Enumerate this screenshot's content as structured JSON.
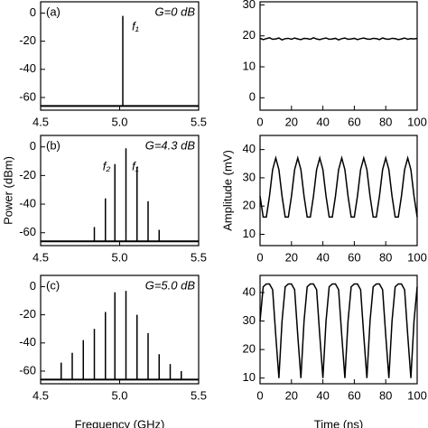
{
  "chart_data": [
    {
      "type": "stem",
      "panel_label": "(a)",
      "gain_label": "G=0 dB",
      "peak_labels": [
        "f₁"
      ],
      "x": [
        5.02
      ],
      "values": [
        -2
      ],
      "noise_floor": -66,
      "xlim": [
        4.5,
        5.5
      ],
      "xticks": [
        4.5,
        {
          "value": 5,
          "label": "5.0"
        },
        5.5
      ],
      "ylim": [
        -69,
        8
      ],
      "yticks": [
        -60,
        -40,
        -20,
        0
      ],
      "color": "#000000"
    },
    {
      "type": "stem",
      "panel_label": "(b)",
      "gain_label": "G=4.3 dB",
      "peak_labels": [
        "f₂",
        "f₁"
      ],
      "ylabel": "Power (dBm)",
      "x": [
        4.84,
        4.91,
        4.97,
        5.04,
        5.11,
        5.18,
        5.25
      ],
      "values": [
        -56,
        -36,
        -12,
        -1,
        -14,
        -38,
        -58
      ],
      "noise_floor": -66,
      "xlim": [
        4.5,
        5.5
      ],
      "xticks": [
        4.5,
        {
          "value": 5,
          "label": "5.0"
        },
        5.5
      ],
      "ylim": [
        -69,
        8
      ],
      "yticks": [
        -60,
        -40,
        -20,
        0
      ],
      "color": "#000000"
    },
    {
      "type": "stem",
      "panel_label": "(c)",
      "gain_label": "G=5.0 dB",
      "xlabel": "Frequency (GHz)",
      "x": [
        4.63,
        4.7,
        4.77,
        4.84,
        4.91,
        4.97,
        5.04,
        5.11,
        5.18,
        5.25,
        5.32,
        5.39
      ],
      "values": [
        -54,
        -47,
        -38,
        -30,
        -18,
        -4,
        -3,
        -20,
        -33,
        -48,
        -55,
        -60
      ],
      "noise_floor": -66,
      "xlim": [
        4.5,
        5.5
      ],
      "xticks": [
        4.5,
        {
          "value": 5,
          "label": "5.0"
        },
        5.5
      ],
      "ylim": [
        -69,
        8
      ],
      "yticks": [
        -60,
        -40,
        -20,
        0
      ],
      "color": "#000000"
    },
    {
      "type": "line",
      "x": [
        0,
        2,
        4,
        6,
        8,
        10,
        12,
        14,
        16,
        18,
        20,
        22,
        24,
        26,
        28,
        30,
        32,
        34,
        36,
        38,
        40,
        42,
        44,
        46,
        48,
        50,
        52,
        54,
        56,
        58,
        60,
        62,
        64,
        66,
        68,
        70,
        72,
        74,
        76,
        78,
        80,
        82,
        84,
        86,
        88,
        90,
        92,
        94,
        96,
        98,
        100
      ],
      "values": [
        19.2,
        18.8,
        19.1,
        19.4,
        18.9,
        19.0,
        19.3,
        18.7,
        19.1,
        19.2,
        18.9,
        19.3,
        19.0,
        18.8,
        19.2,
        19.1,
        18.9,
        19.4,
        19.0,
        18.8,
        19.1,
        19.3,
        18.9,
        19.0,
        19.2,
        18.7,
        19.1,
        19.3,
        18.9,
        19.0,
        19.2,
        18.8,
        19.1,
        19.3,
        19.0,
        18.9,
        19.2,
        19.1,
        18.8,
        19.3,
        19.0,
        18.9,
        19.2,
        19.1,
        18.8,
        19.0,
        19.3,
        18.9,
        19.1,
        19.0,
        19.2
      ],
      "xlim": [
        0,
        100
      ],
      "xticks": [
        0,
        20,
        40,
        60,
        80,
        100
      ],
      "ylim": [
        -4,
        31
      ],
      "yticks": [
        0,
        10,
        20,
        30
      ],
      "color": "#000000"
    },
    {
      "type": "line",
      "ylabel": "Amplitude (mV)",
      "x": [
        0,
        2,
        4,
        6,
        8,
        10,
        12,
        14,
        16,
        18,
        20,
        22,
        24,
        26,
        28,
        30,
        32,
        34,
        36,
        38,
        40,
        42,
        44,
        46,
        48,
        50,
        52,
        54,
        56,
        58,
        60,
        62,
        64,
        66,
        68,
        70,
        72,
        74,
        76,
        78,
        80,
        82,
        84,
        86,
        88,
        90,
        92,
        94,
        96,
        98,
        100
      ],
      "values": [
        23.5,
        16.1,
        16.1,
        23.5,
        32.9,
        37,
        32.9,
        23.5,
        16.1,
        16.1,
        23.5,
        32.9,
        37,
        32.9,
        23.5,
        16.1,
        16.1,
        23.5,
        32.9,
        37,
        32.9,
        23.5,
        16.1,
        16.1,
        23.5,
        32.9,
        37,
        32.9,
        23.5,
        16.1,
        16.1,
        23.5,
        32.9,
        37,
        32.9,
        23.5,
        16.1,
        16.1,
        23.5,
        32.9,
        37,
        32.9,
        23.5,
        16.1,
        16.1,
        23.5,
        32.9,
        37,
        32.9,
        23.5,
        16.1
      ],
      "xlim": [
        0,
        100
      ],
      "xticks": [
        0,
        20,
        40,
        60,
        80,
        100
      ],
      "ylim": [
        6,
        45
      ],
      "yticks": [
        10,
        20,
        30,
        40
      ],
      "color": "#000000"
    },
    {
      "type": "line",
      "xlabel": "Time (ns)",
      "x": [
        0,
        2,
        4,
        6,
        8,
        10,
        12,
        14,
        16,
        18,
        20,
        22,
        24,
        26,
        28,
        30,
        32,
        34,
        36,
        38,
        40,
        42,
        44,
        46,
        48,
        50,
        52,
        54,
        56,
        58,
        60,
        62,
        64,
        66,
        68,
        70,
        72,
        74,
        76,
        78,
        80,
        82,
        84,
        86,
        88,
        90,
        92,
        94,
        96,
        98,
        100
      ],
      "values": [
        30,
        42,
        43,
        43,
        41,
        25,
        10,
        30,
        42,
        43,
        43,
        41,
        25,
        10,
        30,
        42,
        43,
        43,
        41,
        25,
        10,
        30,
        42,
        43,
        43,
        41,
        25,
        10,
        30,
        42,
        43,
        43,
        41,
        25,
        10,
        30,
        42,
        43,
        43,
        41,
        25,
        10,
        30,
        42,
        43,
        43,
        41,
        25,
        10,
        30,
        42
      ],
      "xlim": [
        0,
        100
      ],
      "xticks": [
        0,
        20,
        40,
        60,
        80,
        100
      ],
      "ylim": [
        8,
        46
      ],
      "yticks": [
        10,
        20,
        30,
        40
      ],
      "color": "#000000"
    }
  ]
}
